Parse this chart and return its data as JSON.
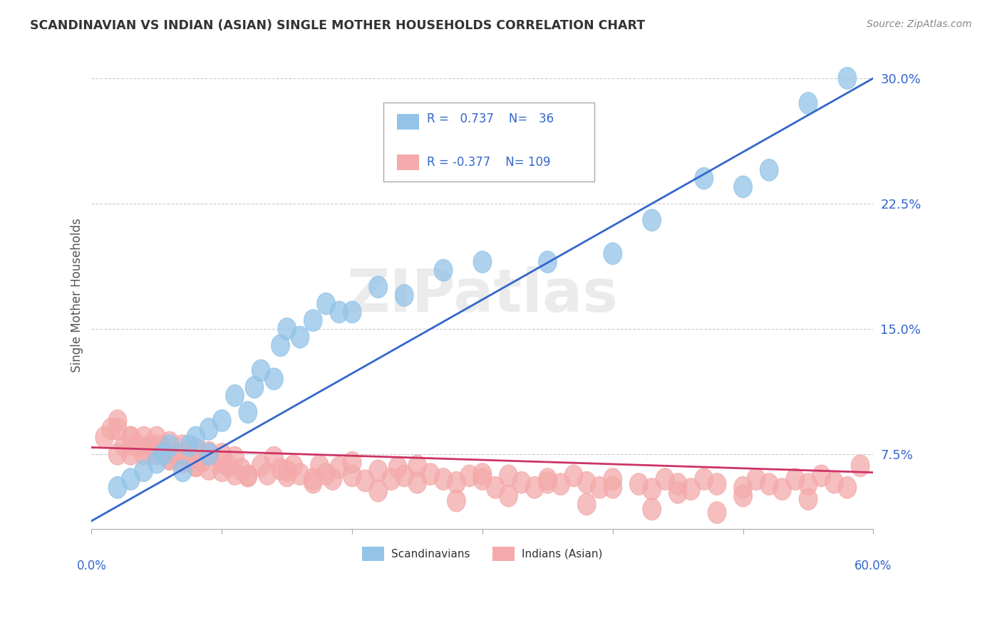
{
  "title": "SCANDINAVIAN VS INDIAN (ASIAN) SINGLE MOTHER HOUSEHOLDS CORRELATION CHART",
  "source": "Source: ZipAtlas.com",
  "ylabel": "Single Mother Households",
  "xlim": [
    0.0,
    0.6
  ],
  "ylim": [
    0.03,
    0.31
  ],
  "ytick_vals": [
    0.075,
    0.15,
    0.225,
    0.3
  ],
  "ytick_labels": [
    "7.5%",
    "15.0%",
    "22.5%",
    "30.0%"
  ],
  "color_blue": "#93C4E8",
  "color_pink": "#F4AAAA",
  "color_blue_line": "#3366CC",
  "color_pink_line": "#CC3366",
  "color_ytick": "#3366CC",
  "color_xtick": "#3366CC",
  "color_legend_text": "#3366CC",
  "watermark_text": "ZIPatlas",
  "blue_x": [
    0.02,
    0.03,
    0.04,
    0.05,
    0.055,
    0.06,
    0.07,
    0.075,
    0.08,
    0.09,
    0.09,
    0.1,
    0.11,
    0.12,
    0.125,
    0.13,
    0.14,
    0.145,
    0.15,
    0.16,
    0.17,
    0.18,
    0.19,
    0.2,
    0.22,
    0.24,
    0.27,
    0.3,
    0.35,
    0.4,
    0.43,
    0.47,
    0.5,
    0.52,
    0.55,
    0.58
  ],
  "blue_y": [
    0.055,
    0.06,
    0.065,
    0.07,
    0.075,
    0.08,
    0.065,
    0.08,
    0.085,
    0.075,
    0.09,
    0.095,
    0.11,
    0.1,
    0.115,
    0.125,
    0.12,
    0.14,
    0.15,
    0.145,
    0.155,
    0.165,
    0.16,
    0.16,
    0.175,
    0.17,
    0.185,
    0.19,
    0.19,
    0.195,
    0.215,
    0.24,
    0.235,
    0.245,
    0.285,
    0.3
  ],
  "pink_x": [
    0.01,
    0.015,
    0.02,
    0.02,
    0.025,
    0.03,
    0.03,
    0.035,
    0.04,
    0.04,
    0.045,
    0.05,
    0.05,
    0.055,
    0.06,
    0.06,
    0.065,
    0.07,
    0.07,
    0.075,
    0.08,
    0.08,
    0.085,
    0.09,
    0.09,
    0.1,
    0.1,
    0.105,
    0.11,
    0.11,
    0.115,
    0.12,
    0.13,
    0.135,
    0.14,
    0.145,
    0.15,
    0.155,
    0.16,
    0.17,
    0.175,
    0.18,
    0.185,
    0.19,
    0.2,
    0.21,
    0.22,
    0.23,
    0.235,
    0.24,
    0.25,
    0.26,
    0.27,
    0.28,
    0.29,
    0.3,
    0.31,
    0.32,
    0.33,
    0.34,
    0.35,
    0.36,
    0.37,
    0.38,
    0.39,
    0.4,
    0.42,
    0.43,
    0.44,
    0.45,
    0.46,
    0.47,
    0.48,
    0.5,
    0.51,
    0.52,
    0.53,
    0.54,
    0.55,
    0.56,
    0.57,
    0.58,
    0.59,
    0.25,
    0.3,
    0.35,
    0.4,
    0.45,
    0.5,
    0.55,
    0.2,
    0.15,
    0.1,
    0.07,
    0.05,
    0.03,
    0.02,
    0.38,
    0.43,
    0.48,
    0.32,
    0.28,
    0.22,
    0.17,
    0.12,
    0.08,
    0.06,
    0.04
  ],
  "pink_y": [
    0.085,
    0.09,
    0.075,
    0.095,
    0.08,
    0.075,
    0.085,
    0.08,
    0.075,
    0.085,
    0.08,
    0.075,
    0.085,
    0.078,
    0.072,
    0.082,
    0.075,
    0.07,
    0.08,
    0.073,
    0.068,
    0.078,
    0.071,
    0.066,
    0.076,
    0.065,
    0.075,
    0.068,
    0.063,
    0.073,
    0.066,
    0.062,
    0.068,
    0.063,
    0.073,
    0.066,
    0.062,
    0.068,
    0.063,
    0.06,
    0.068,
    0.063,
    0.06,
    0.067,
    0.062,
    0.059,
    0.065,
    0.06,
    0.067,
    0.062,
    0.058,
    0.063,
    0.06,
    0.058,
    0.062,
    0.06,
    0.055,
    0.062,
    0.058,
    0.055,
    0.06,
    0.057,
    0.062,
    0.058,
    0.055,
    0.06,
    0.057,
    0.054,
    0.06,
    0.057,
    0.054,
    0.06,
    0.057,
    0.055,
    0.06,
    0.057,
    0.054,
    0.06,
    0.057,
    0.062,
    0.058,
    0.055,
    0.068,
    0.068,
    0.063,
    0.058,
    0.055,
    0.052,
    0.05,
    0.048,
    0.07,
    0.065,
    0.07,
    0.075,
    0.08,
    0.085,
    0.09,
    0.045,
    0.042,
    0.04,
    0.05,
    0.047,
    0.053,
    0.058,
    0.062,
    0.068,
    0.072,
    0.078
  ],
  "blue_line_x0": 0.0,
  "blue_line_y0": 0.035,
  "blue_line_x1": 0.6,
  "blue_line_y1": 0.3,
  "pink_line_x0": 0.0,
  "pink_line_y0": 0.079,
  "pink_line_x1": 0.6,
  "pink_line_y1": 0.064
}
